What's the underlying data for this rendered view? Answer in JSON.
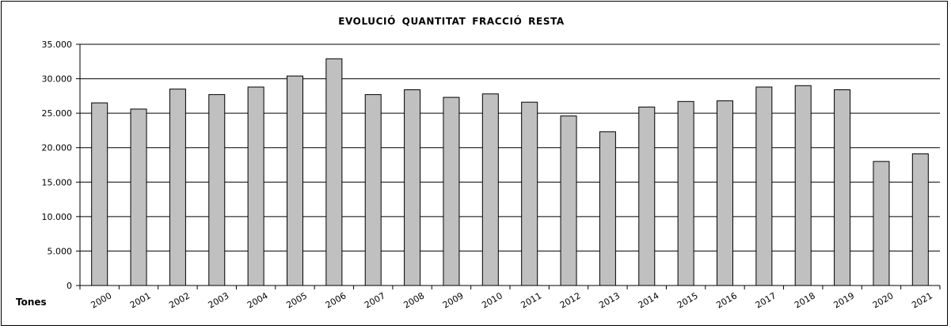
{
  "chart_data": {
    "type": "bar",
    "title": "EVOLUCIÓ  QUANTITAT  FRACCIÓ  RESTA",
    "xlabel": "",
    "ylabel": "Tones",
    "categories": [
      "2000",
      "2001",
      "2002",
      "2003",
      "2004",
      "2005",
      "2006",
      "2007",
      "2008",
      "2009",
      "2010",
      "2011",
      "2012",
      "2013",
      "2014",
      "2015",
      "2016",
      "2017",
      "2018",
      "2019",
      "2020",
      "2021"
    ],
    "values": [
      26500,
      25600,
      28500,
      27700,
      28800,
      30400,
      32900,
      27700,
      28400,
      27300,
      27800,
      26600,
      24600,
      22300,
      25900,
      26700,
      26800,
      28800,
      29000,
      28400,
      18000,
      19100
    ],
    "ylim": [
      0,
      35000
    ],
    "yticks": [
      0,
      5000,
      10000,
      15000,
      20000,
      25000,
      30000,
      35000
    ],
    "ytick_labels": [
      "0",
      "5.000",
      "10.000",
      "15.000",
      "20.000",
      "25.000",
      "30.000",
      "35.000"
    ],
    "grid": true,
    "bar_color": "#c0c0c0",
    "bar_edge_color": "#000000"
  }
}
